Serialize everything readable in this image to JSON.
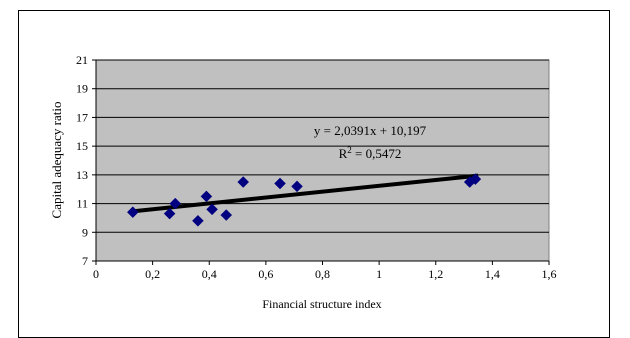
{
  "chart_data": {
    "type": "scatter",
    "title": "",
    "xlabel": "Financial structure index",
    "ylabel": "Capital adequacy ratio",
    "xlim": [
      0,
      1.6
    ],
    "ylim": [
      7,
      21
    ],
    "x_ticks": [
      0,
      0.2,
      0.4,
      0.6,
      0.8,
      1,
      1.2,
      1.4,
      1.6
    ],
    "x_tick_labels": [
      "0",
      "0,2",
      "0,4",
      "0,6",
      "0,8",
      "1",
      "1,2",
      "1,4",
      "1,6"
    ],
    "y_ticks": [
      7,
      9,
      11,
      13,
      15,
      17,
      19,
      21
    ],
    "y_tick_labels": [
      "7",
      "9",
      "11",
      "13",
      "15",
      "17",
      "19",
      "21"
    ],
    "grid": "horizontal",
    "plot_background": "#c0c0c0",
    "marker_color": "#000080",
    "trendline_color": "#000000",
    "points": [
      {
        "x": 0.13,
        "y": 10.4
      },
      {
        "x": 0.26,
        "y": 10.3
      },
      {
        "x": 0.28,
        "y": 11.0
      },
      {
        "x": 0.36,
        "y": 9.8
      },
      {
        "x": 0.39,
        "y": 11.5
      },
      {
        "x": 0.41,
        "y": 10.6
      },
      {
        "x": 0.46,
        "y": 10.2
      },
      {
        "x": 0.52,
        "y": 12.5
      },
      {
        "x": 0.65,
        "y": 12.4
      },
      {
        "x": 0.71,
        "y": 12.2
      },
      {
        "x": 1.32,
        "y": 12.5
      },
      {
        "x": 1.34,
        "y": 12.7
      }
    ],
    "trendline": {
      "slope": 2.0391,
      "intercept": 10.197,
      "x_range": [
        0.12,
        1.35
      ],
      "equation_label": "y = 2,0391x + 10,197",
      "r2_prefix": "R",
      "r2_exponent": "2",
      "r2_value": " = 0,5472"
    }
  }
}
